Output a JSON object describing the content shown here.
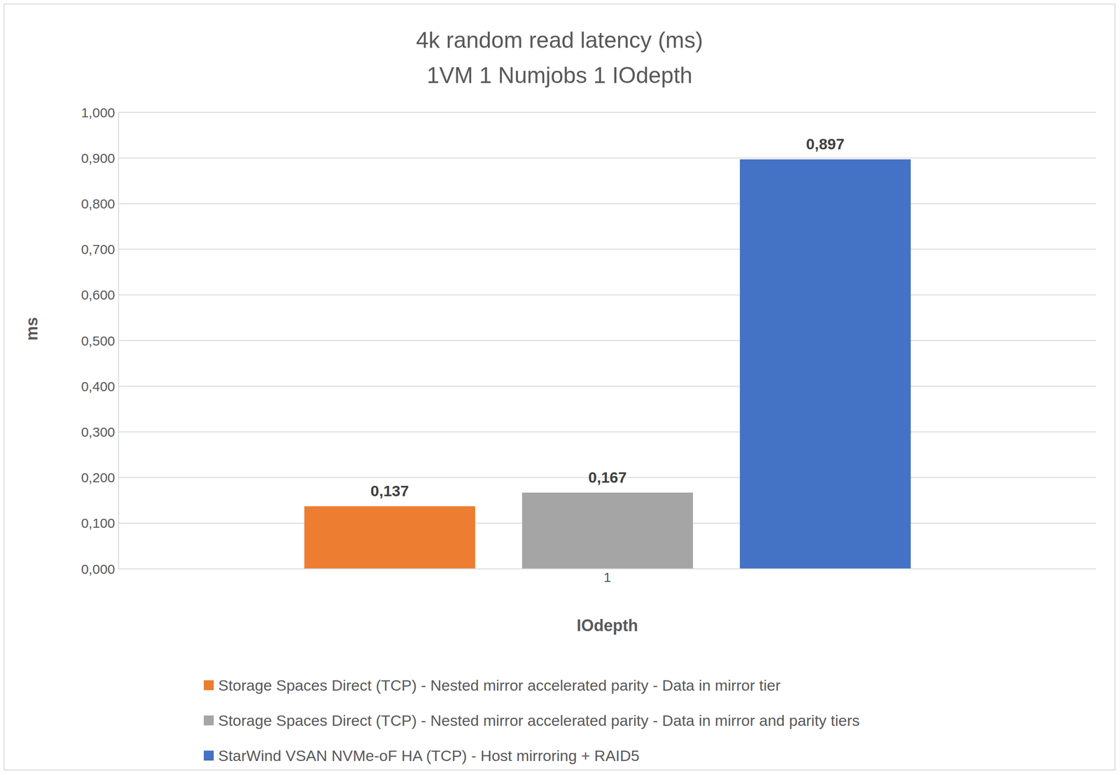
{
  "chart_data": {
    "type": "bar",
    "title": "4k random read latency (ms)",
    "subtitle": "1VM 1 Numjobs 1 IOdepth",
    "x_label": "IOdepth",
    "y_label": "ms",
    "categories": [
      "1"
    ],
    "series": [
      {
        "name": "Storage Spaces Direct (TCP) - Nested mirror accelerated parity - Data in mirror tier",
        "color": "#ed7d31",
        "values": [
          0.137
        ],
        "value_labels": [
          "0,137"
        ]
      },
      {
        "name": "Storage Spaces Direct (TCP) - Nested mirror accelerated parity - Data in mirror and parity tiers",
        "color": "#a5a5a5",
        "values": [
          0.167
        ],
        "value_labels": [
          "0,167"
        ]
      },
      {
        "name": "StarWind VSAN NVMe-oF HA (TCP) - Host mirroring + RAID5",
        "color": "#4472c4",
        "values": [
          0.897
        ],
        "value_labels": [
          "0,897"
        ]
      }
    ],
    "ylim": [
      0,
      1
    ],
    "yticks": [
      {
        "value": 0,
        "label": "0,000"
      },
      {
        "value": 0.1,
        "label": "0,100"
      },
      {
        "value": 0.2,
        "label": "0,200"
      },
      {
        "value": 0.3,
        "label": "0,300"
      },
      {
        "value": 0.4,
        "label": "0,400"
      },
      {
        "value": 0.5,
        "label": "0,500"
      },
      {
        "value": 0.6,
        "label": "0,600"
      },
      {
        "value": 0.7,
        "label": "0,700"
      },
      {
        "value": 0.8,
        "label": "0,800"
      },
      {
        "value": 0.9,
        "label": "0,900"
      },
      {
        "value": 1,
        "label": "1,000"
      }
    ],
    "grid": true,
    "data_labels": true
  }
}
